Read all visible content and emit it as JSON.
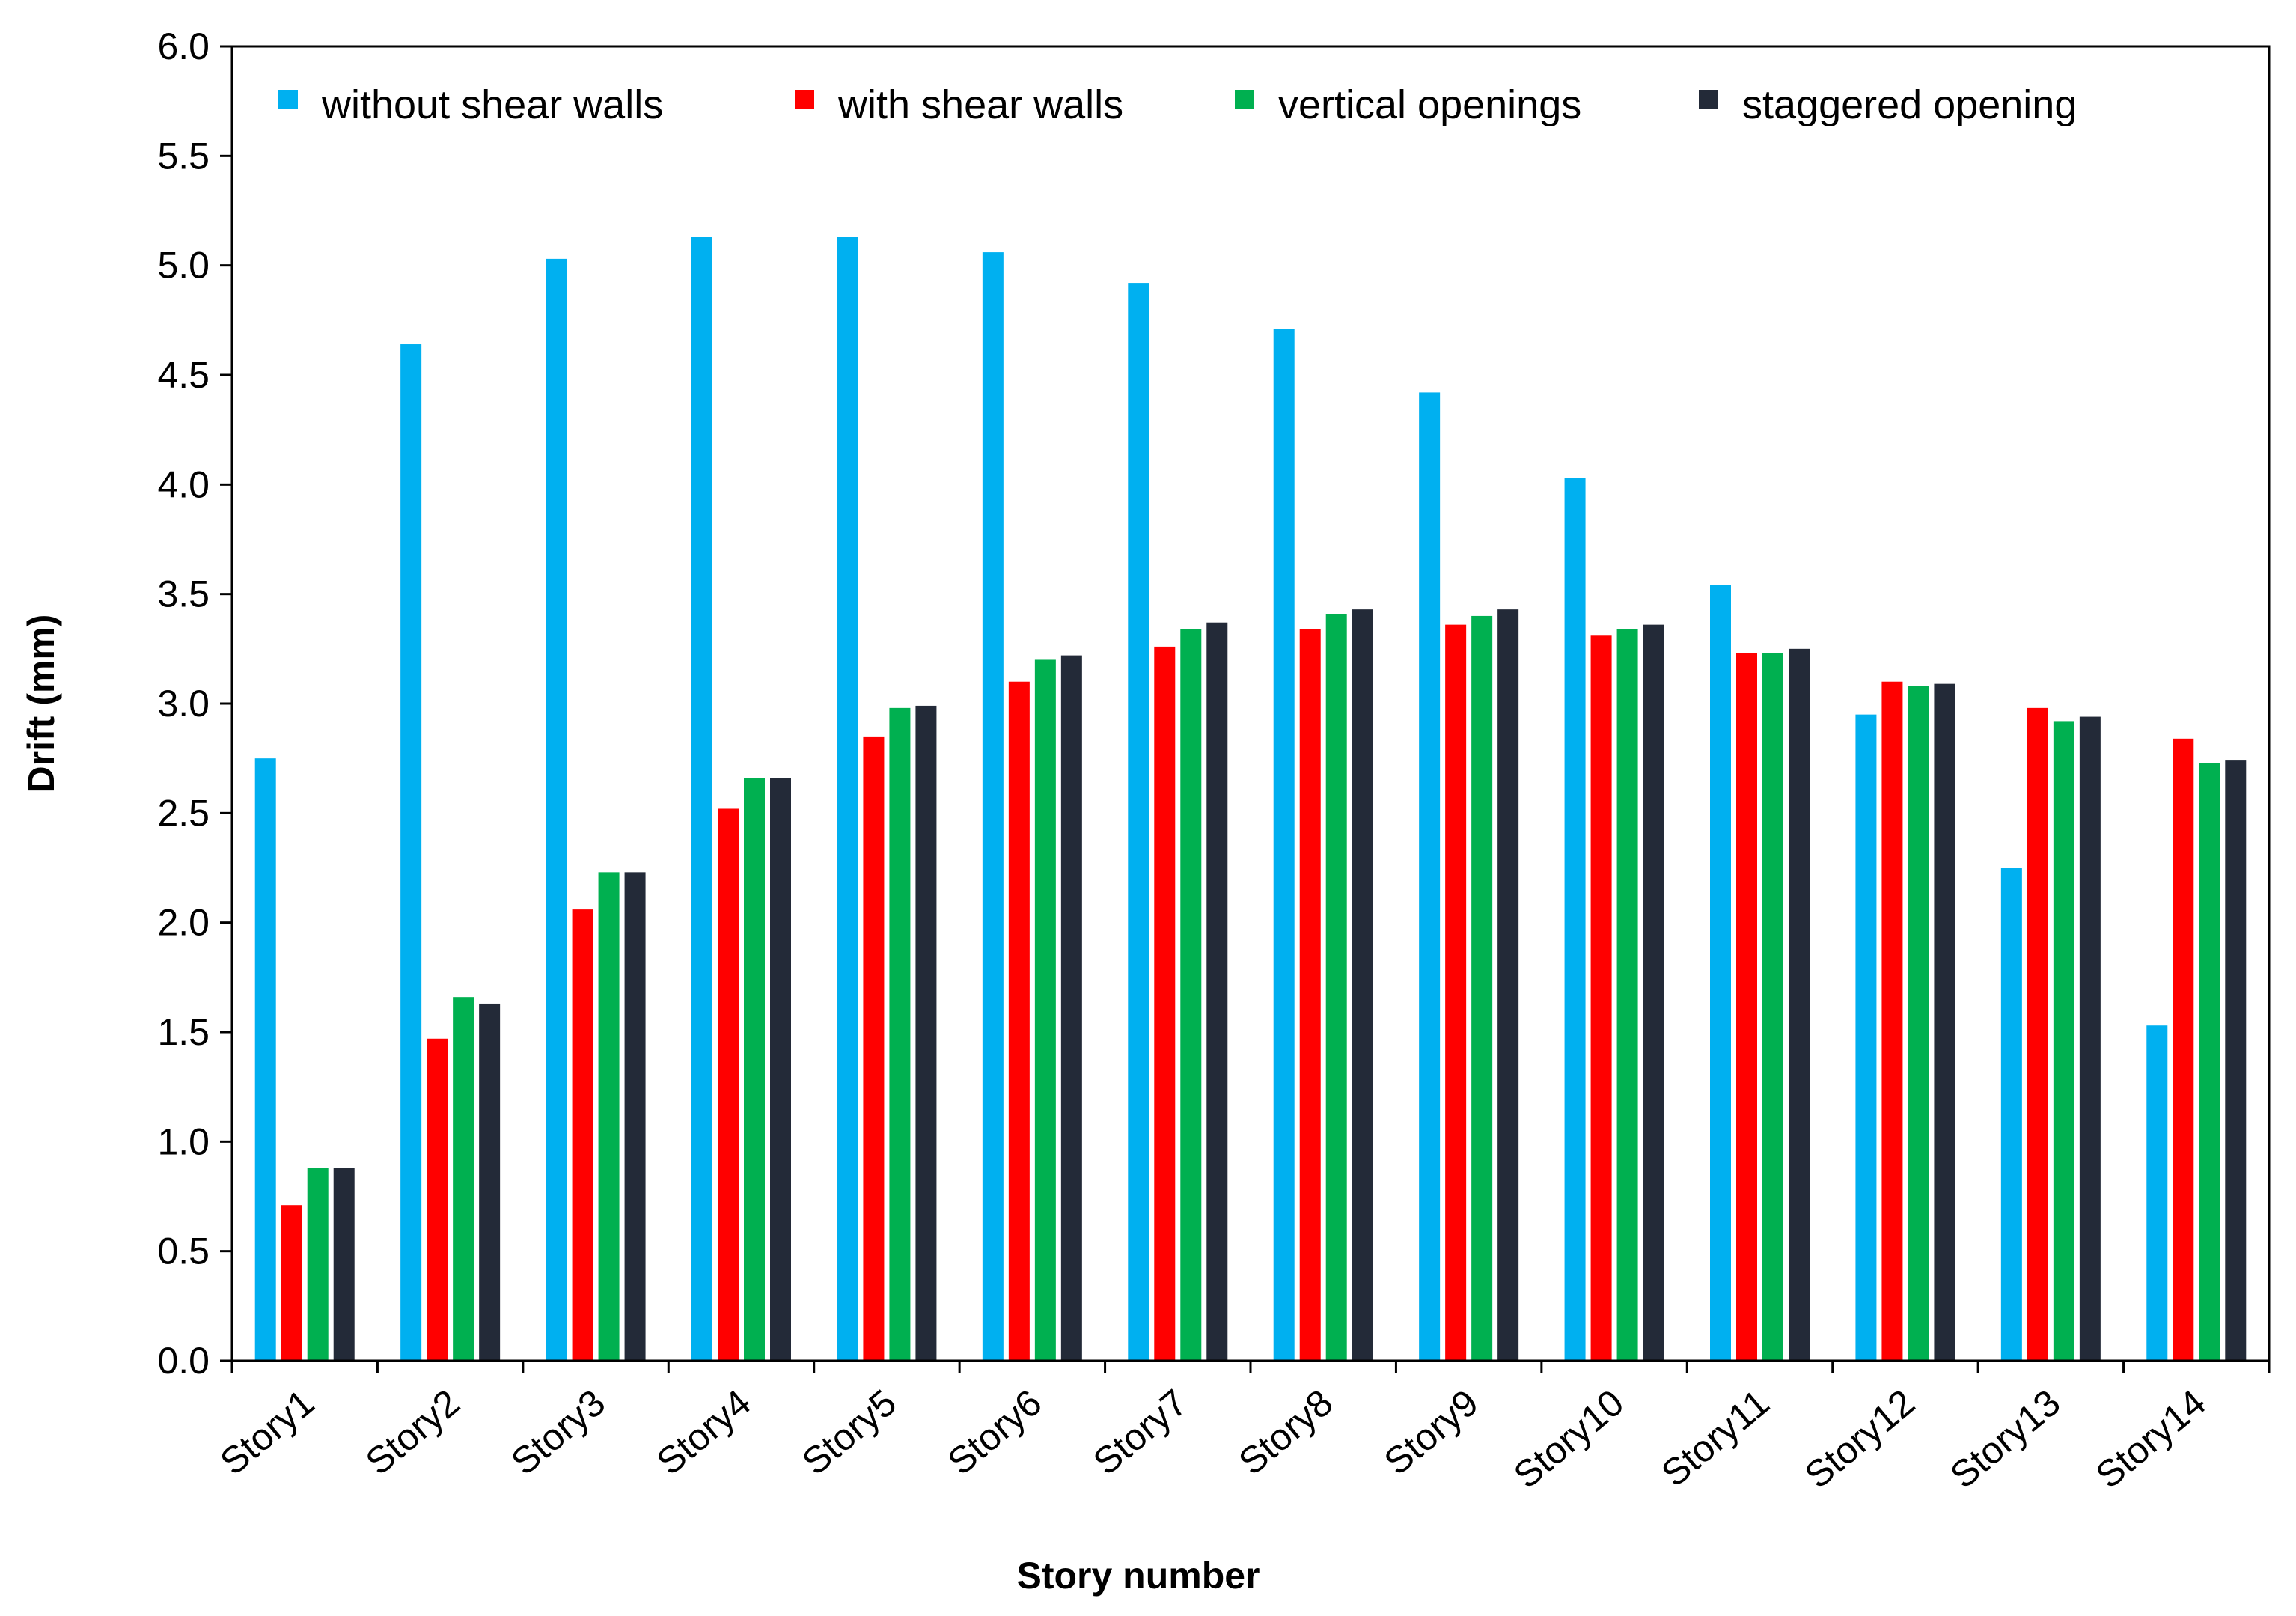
{
  "chart_data": {
    "type": "bar",
    "title": "",
    "xlabel": "Story number",
    "ylabel": "Drift (mm)",
    "ylim": [
      0,
      6
    ],
    "ytick_step": 0.5,
    "ytick_labels": [
      "0.0",
      "0.5",
      "1.0",
      "1.5",
      "2.0",
      "2.5",
      "3.0",
      "3.5",
      "4.0",
      "4.5",
      "5.0",
      "5.5",
      "6.0"
    ],
    "grid": false,
    "legend_position": "top",
    "categories": [
      "Story1",
      "Story2",
      "Story3",
      "Story4",
      "Story5",
      "Story6",
      "Story7",
      "Story8",
      "Story9",
      "Story10",
      "Story11",
      "Story12",
      "Story13",
      "Story14"
    ],
    "series": [
      {
        "name": "without shear walls",
        "color": "#00b0f0",
        "values": [
          2.75,
          4.64,
          5.03,
          5.13,
          5.13,
          5.06,
          4.92,
          4.71,
          4.42,
          4.03,
          3.54,
          2.95,
          2.25,
          1.53
        ]
      },
      {
        "name": "with shear walls",
        "color": "#ff0000",
        "values": [
          0.71,
          1.47,
          2.06,
          2.52,
          2.85,
          3.1,
          3.26,
          3.34,
          3.36,
          3.31,
          3.23,
          3.1,
          2.98,
          2.84
        ]
      },
      {
        "name": "vertical openings",
        "color": "#00b050",
        "values": [
          0.88,
          1.66,
          2.23,
          2.66,
          2.98,
          3.2,
          3.34,
          3.41,
          3.4,
          3.34,
          3.23,
          3.08,
          2.92,
          2.73
        ]
      },
      {
        "name": "staggered opening",
        "color": "#232a38",
        "values": [
          0.88,
          1.63,
          2.23,
          2.66,
          2.99,
          3.22,
          3.37,
          3.43,
          3.43,
          3.36,
          3.25,
          3.09,
          2.94,
          2.74
        ]
      }
    ]
  }
}
